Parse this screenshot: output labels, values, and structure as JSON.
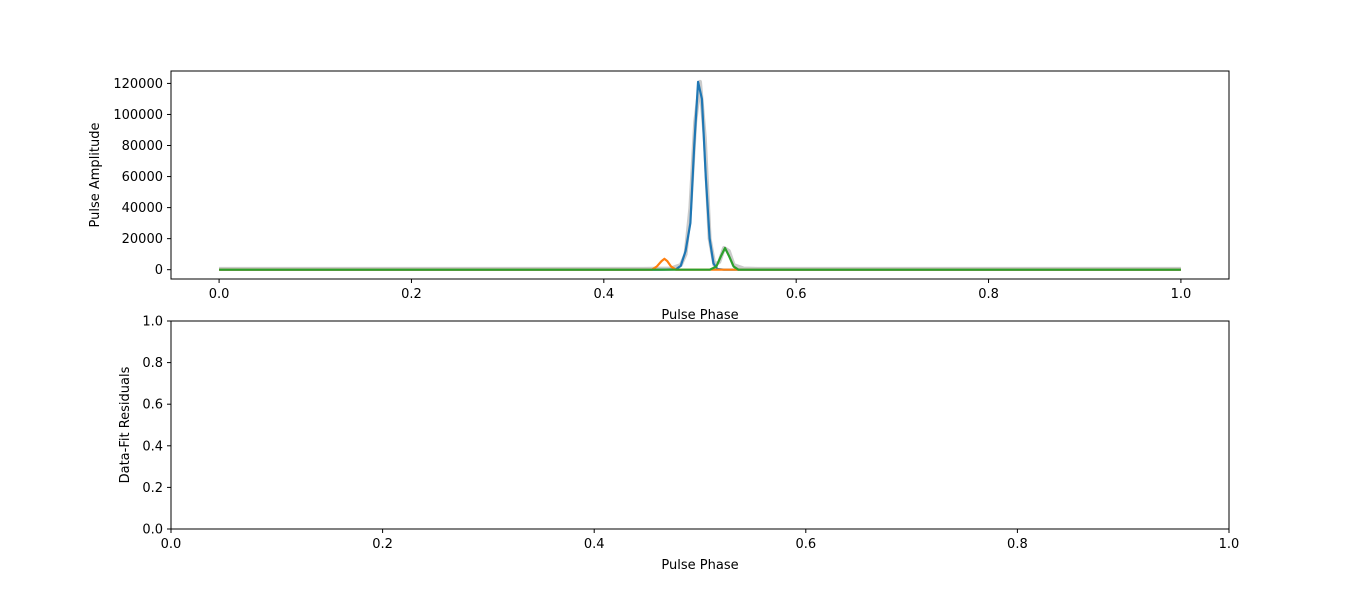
{
  "chart_data": [
    {
      "type": "line",
      "xlabel": "Pulse Phase",
      "ylabel": "Pulse Amplitude",
      "xlim": [
        -0.05,
        1.05
      ],
      "ylim": [
        -6000,
        128000
      ],
      "xticks": [
        0.0,
        0.2,
        0.4,
        0.6,
        0.8,
        1.0
      ],
      "xtick_labels": [
        "0.0",
        "0.2",
        "0.4",
        "0.6",
        "0.8",
        "1.0"
      ],
      "yticks": [
        0,
        20000,
        40000,
        60000,
        80000,
        100000,
        120000
      ],
      "ytick_labels": [
        "0",
        "20000",
        "40000",
        "60000",
        "80000",
        "100000",
        "120000"
      ],
      "grid": false,
      "series": [
        {
          "color": "#a9a9a9",
          "x": [
            0.0,
            0.44,
            0.47,
            0.48,
            0.485,
            0.49,
            0.495,
            0.5,
            0.505,
            0.51,
            0.515,
            0.52,
            0.525,
            0.53,
            0.535,
            0.545,
            0.56,
            1.0
          ],
          "values": [
            500,
            500,
            800,
            3000,
            10000,
            40000,
            95000,
            121000,
            85000,
            20000,
            3000,
            5000,
            14000,
            12000,
            3000,
            800,
            500,
            500
          ]
        },
        {
          "color": "#1f77b4",
          "x": [
            0.0,
            0.46,
            0.475,
            0.48,
            0.485,
            0.49,
            0.494,
            0.498,
            0.502,
            0.506,
            0.51,
            0.514,
            0.518,
            0.525,
            0.54,
            1.0
          ],
          "values": [
            0,
            0,
            200,
            2500,
            12000,
            30000,
            80000,
            121000,
            110000,
            60000,
            20000,
            4000,
            500,
            0,
            0,
            0
          ]
        },
        {
          "color": "#ff7f0e",
          "x": [
            0.0,
            0.45,
            0.455,
            0.46,
            0.463,
            0.466,
            0.47,
            0.475,
            1.0
          ],
          "values": [
            0,
            0,
            2000,
            5500,
            7000,
            5500,
            2000,
            0,
            0
          ]
        },
        {
          "color": "#2ca02c",
          "x": [
            0.0,
            0.51,
            0.517,
            0.522,
            0.526,
            0.53,
            0.535,
            0.54,
            1.0
          ],
          "values": [
            0,
            0,
            2000,
            9000,
            14000,
            9000,
            2000,
            0,
            0
          ]
        }
      ]
    },
    {
      "type": "line",
      "xlabel": "Pulse Phase",
      "ylabel": "Data-Fit Residuals",
      "xlim": [
        0.0,
        1.0
      ],
      "ylim": [
        0.0,
        1.0
      ],
      "xticks": [
        0.0,
        0.2,
        0.4,
        0.6,
        0.8,
        1.0
      ],
      "xtick_labels": [
        "0.0",
        "0.2",
        "0.4",
        "0.6",
        "0.8",
        "1.0"
      ],
      "yticks": [
        0.0,
        0.2,
        0.4,
        0.6,
        0.8,
        1.0
      ],
      "ytick_labels": [
        "0.0",
        "0.2",
        "0.4",
        "0.6",
        "0.8",
        "1.0"
      ],
      "grid": false,
      "series": []
    }
  ]
}
